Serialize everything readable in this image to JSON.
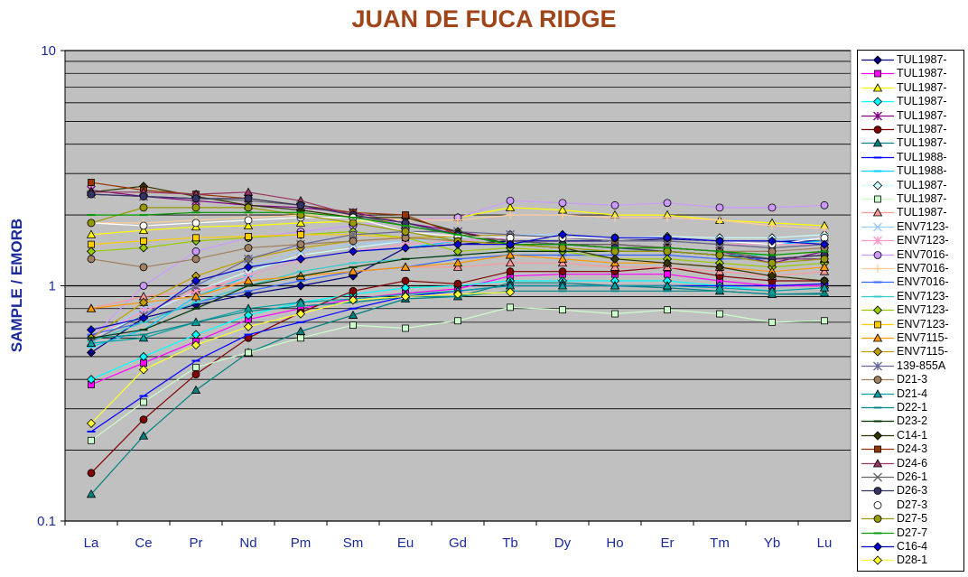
{
  "chart_data": {
    "type": "line",
    "title": "JUAN DE FUCA RIDGE",
    "ylabel": "SAMPLE / EMORB",
    "xlabel": "",
    "yscale": "log",
    "ylim": [
      0.1,
      10
    ],
    "ytick_labels": [
      "10",
      "1",
      "0.1"
    ],
    "grid": true,
    "legend_position": "right",
    "plot_background": "#c0c0c0",
    "categories": [
      "La",
      "Ce",
      "Pr",
      "Nd",
      "Pm",
      "Sm",
      "Eu",
      "Gd",
      "Tb",
      "Dy",
      "Ho",
      "Er",
      "Tm",
      "Yb",
      "Lu"
    ],
    "series": [
      {
        "name": "TUL1987-",
        "color": "#000080",
        "marker": "diamond",
        "values": [
          0.52,
          0.73,
          0.83,
          0.92,
          1.0,
          1.1,
          1.45,
          1.5,
          1.55,
          1.55,
          1.55,
          1.58,
          1.55,
          1.55,
          1.55
        ]
      },
      {
        "name": "TUL1987-",
        "color": "#ff00ff",
        "marker": "square",
        "values": [
          0.38,
          0.47,
          0.58,
          0.72,
          0.8,
          0.88,
          0.93,
          0.97,
          1.1,
          1.12,
          1.12,
          1.12,
          1.05,
          1.0,
          1.0
        ]
      },
      {
        "name": "TUL1987-",
        "color": "#ffff00",
        "marker": "triangle",
        "values": [
          1.65,
          1.72,
          1.78,
          1.8,
          1.85,
          1.88,
          1.9,
          1.95,
          2.15,
          2.1,
          2.0,
          2.0,
          1.9,
          1.85,
          1.8
        ]
      },
      {
        "name": "TUL1987-",
        "color": "#00ffff",
        "marker": "diamond",
        "values": [
          0.4,
          0.5,
          0.62,
          0.75,
          0.85,
          0.92,
          0.98,
          1.0,
          1.05,
          1.05,
          1.05,
          1.05,
          1.0,
          0.95,
          0.98
        ]
      },
      {
        "name": "TUL1987-",
        "color": "#800080",
        "marker": "star",
        "values": [
          2.55,
          2.4,
          2.3,
          2.2,
          2.15,
          2.05,
          1.85,
          1.7,
          1.55,
          1.5,
          1.45,
          1.45,
          1.4,
          1.25,
          1.4
        ]
      },
      {
        "name": "TUL1987-",
        "color": "#800000",
        "marker": "circle",
        "values": [
          0.16,
          0.27,
          0.42,
          0.6,
          0.77,
          0.95,
          1.05,
          1.02,
          1.15,
          1.15,
          1.15,
          1.2,
          1.1,
          1.05,
          1.05
        ]
      },
      {
        "name": "TUL1987-",
        "color": "#008080",
        "marker": "triangle",
        "values": [
          0.13,
          0.23,
          0.36,
          0.52,
          0.64,
          0.75,
          0.88,
          0.9,
          1.03,
          1.03,
          1.0,
          0.98,
          0.95,
          0.92,
          0.93
        ]
      },
      {
        "name": "TUL1988-",
        "color": "#0000ff",
        "marker": "dash",
        "values": [
          0.24,
          0.34,
          0.48,
          0.62,
          0.7,
          0.8,
          0.9,
          0.95,
          1.0,
          1.0,
          1.0,
          1.0,
          1.0,
          1.0,
          1.02
        ]
      },
      {
        "name": "TUL1988-",
        "color": "#00ccff",
        "marker": "dash",
        "values": [
          0.55,
          0.65,
          0.9,
          1.1,
          1.3,
          1.4,
          1.45,
          1.55,
          1.6,
          1.6,
          1.55,
          1.55,
          1.5,
          1.5,
          1.55
        ]
      },
      {
        "name": "TUL1987-",
        "color": "#ccffff",
        "marker": "diamond",
        "values": [
          0.6,
          0.75,
          0.95,
          1.15,
          1.35,
          1.45,
          1.55,
          1.6,
          1.65,
          1.65,
          1.6,
          1.62,
          1.6,
          1.6,
          1.65
        ]
      },
      {
        "name": "TUL1987-",
        "color": "#ccffcc",
        "marker": "square",
        "values": [
          0.22,
          0.32,
          0.45,
          0.52,
          0.6,
          0.68,
          0.66,
          0.71,
          0.81,
          0.79,
          0.76,
          0.79,
          0.76,
          0.7,
          0.71
        ]
      },
      {
        "name": "TUL1987-",
        "color": "#ff9999",
        "marker": "triangle",
        "values": [
          0.8,
          0.9,
          0.95,
          1.05,
          1.1,
          1.15,
          1.2,
          1.2,
          1.25,
          1.25,
          1.2,
          1.2,
          1.15,
          1.1,
          1.15
        ]
      },
      {
        "name": "ENV7123-",
        "color": "#99ccff",
        "marker": "x",
        "values": [
          0.6,
          0.8,
          1.0,
          1.2,
          1.4,
          1.5,
          1.55,
          1.6,
          1.65,
          1.65,
          1.6,
          1.6,
          1.55,
          1.55,
          1.6
        ]
      },
      {
        "name": "ENV7123-",
        "color": "#ff99cc",
        "marker": "star",
        "values": [
          0.6,
          0.78,
          0.95,
          1.1,
          1.3,
          1.4,
          1.5,
          1.55,
          1.6,
          1.6,
          1.55,
          1.55,
          1.5,
          1.5,
          1.5
        ]
      },
      {
        "name": "ENV7016-",
        "color": "#cc99ff",
        "marker": "circle",
        "values": [
          0.6,
          1.0,
          1.4,
          1.6,
          1.7,
          1.8,
          1.9,
          1.95,
          2.3,
          2.25,
          2.2,
          2.25,
          2.15,
          2.15,
          2.2
        ]
      },
      {
        "name": "ENV7016-",
        "color": "#ffcc99",
        "marker": "plus",
        "values": [
          1.85,
          1.85,
          1.9,
          1.95,
          2.0,
          2.0,
          1.9,
          1.9,
          2.0,
          2.0,
          1.95,
          1.95,
          1.9,
          1.8,
          1.75
        ]
      },
      {
        "name": "ENV7016-",
        "color": "#3366ff",
        "marker": "dash",
        "values": [
          0.62,
          0.7,
          0.85,
          0.95,
          1.05,
          1.15,
          1.2,
          1.3,
          1.35,
          1.35,
          1.35,
          1.35,
          1.3,
          1.3,
          1.3
        ]
      },
      {
        "name": "ENV7123-",
        "color": "#33cccc",
        "marker": "dash",
        "values": [
          0.58,
          0.7,
          0.85,
          1.0,
          1.15,
          1.25,
          1.3,
          1.35,
          1.4,
          1.4,
          1.4,
          1.4,
          1.35,
          1.35,
          1.4
        ]
      },
      {
        "name": "ENV7123-",
        "color": "#99cc00",
        "marker": "diamond",
        "values": [
          1.4,
          1.45,
          1.55,
          1.6,
          1.65,
          1.7,
          1.6,
          1.4,
          1.45,
          1.4,
          1.3,
          1.3,
          1.25,
          1.2,
          1.25
        ]
      },
      {
        "name": "ENV7123-",
        "color": "#ffcc00",
        "marker": "square",
        "values": [
          1.5,
          1.55,
          1.6,
          1.62,
          1.65,
          1.65,
          1.6,
          1.55,
          1.5,
          1.5,
          1.45,
          1.45,
          1.4,
          1.35,
          1.4
        ]
      },
      {
        "name": "ENV7115-",
        "color": "#ff9900",
        "marker": "triangle",
        "values": [
          0.8,
          0.85,
          0.9,
          1.05,
          1.1,
          1.15,
          1.2,
          1.25,
          1.35,
          1.3,
          1.25,
          1.25,
          1.2,
          1.15,
          1.2
        ]
      },
      {
        "name": "ENV7115-",
        "color": "#c0a000",
        "marker": "diamond",
        "values": [
          0.6,
          0.85,
          1.1,
          1.3,
          1.45,
          1.55,
          1.6,
          1.62,
          1.65,
          1.6,
          1.55,
          1.55,
          1.5,
          1.45,
          1.5
        ]
      },
      {
        "name": "139-855A",
        "color": "#666699",
        "marker": "star",
        "values": [
          0.58,
          0.75,
          1.0,
          1.3,
          1.5,
          1.65,
          1.7,
          1.7,
          1.65,
          1.6,
          1.55,
          1.55,
          1.5,
          1.45,
          1.5
        ]
      },
      {
        "name": "D21-3",
        "color": "#a08060",
        "marker": "circle",
        "values": [
          1.3,
          1.2,
          1.3,
          1.45,
          1.5,
          1.55,
          1.6,
          1.55,
          1.5,
          1.5,
          1.45,
          1.45,
          1.4,
          1.4,
          1.45
        ]
      },
      {
        "name": "D21-4",
        "color": "#00a0a0",
        "marker": "triangle",
        "values": [
          0.57,
          0.6,
          0.7,
          0.8,
          0.85,
          0.88,
          0.92,
          0.95,
          1.0,
          1.0,
          1.0,
          1.0,
          0.98,
          0.95,
          0.98
        ]
      },
      {
        "name": "D22-1",
        "color": "#008888",
        "marker": "dash",
        "values": [
          0.6,
          0.62,
          0.7,
          0.78,
          0.82,
          0.85,
          0.9,
          0.9,
          0.95,
          0.95,
          0.95,
          0.95,
          0.95,
          0.92,
          0.92
        ]
      },
      {
        "name": "D23-2",
        "color": "#003300",
        "marker": "dash",
        "values": [
          0.6,
          0.65,
          0.8,
          1.0,
          1.1,
          1.2,
          1.3,
          1.35,
          1.4,
          1.4,
          1.4,
          1.4,
          1.35,
          1.3,
          1.35
        ]
      },
      {
        "name": "C14-1",
        "color": "#333300",
        "marker": "diamond",
        "values": [
          2.5,
          2.65,
          2.4,
          2.2,
          2.1,
          1.95,
          1.95,
          1.7,
          1.5,
          1.45,
          1.3,
          1.25,
          1.2,
          1.1,
          1.05
        ]
      },
      {
        "name": "D24-3",
        "color": "#993300",
        "marker": "square",
        "values": [
          2.75,
          2.55,
          2.45,
          2.35,
          2.2,
          2.05,
          2.0,
          1.65,
          1.55,
          1.5,
          1.5,
          1.45,
          1.4,
          1.3,
          1.35
        ]
      },
      {
        "name": "D24-6",
        "color": "#993366",
        "marker": "triangle",
        "values": [
          2.5,
          2.5,
          2.45,
          2.5,
          2.3,
          2.0,
          1.8,
          1.65,
          1.55,
          1.5,
          1.45,
          1.45,
          1.4,
          1.3,
          1.3
        ]
      },
      {
        "name": "D26-1",
        "color": "#666666",
        "marker": "x",
        "values": [
          2.45,
          2.4,
          2.35,
          2.3,
          2.2,
          2.0,
          1.8,
          1.65,
          1.55,
          1.5,
          1.5,
          1.45,
          1.4,
          1.3,
          1.35
        ]
      },
      {
        "name": "D26-3",
        "color": "#333366",
        "marker": "circle",
        "values": [
          2.45,
          2.4,
          2.35,
          2.35,
          2.2,
          2.0,
          1.85,
          1.65,
          1.5,
          1.5,
          1.45,
          1.4,
          1.35,
          1.3,
          1.35
        ]
      },
      {
        "name": "D27-3",
        "color": "#ffffff",
        "marker": "circle",
        "values": [
          1.85,
          1.8,
          1.85,
          1.9,
          1.95,
          1.95,
          1.7,
          1.62,
          1.6,
          1.6,
          1.6,
          1.6,
          1.55,
          1.5,
          1.6
        ]
      },
      {
        "name": "D27-5",
        "color": "#999900",
        "marker": "circle",
        "values": [
          1.85,
          2.15,
          2.15,
          2.15,
          2.0,
          1.85,
          1.7,
          1.55,
          1.5,
          1.45,
          1.4,
          1.4,
          1.35,
          1.25,
          1.3
        ]
      },
      {
        "name": "D27-7",
        "color": "#009900",
        "marker": "dash",
        "values": [
          2.0,
          2.0,
          2.05,
          2.05,
          2.05,
          1.95,
          1.8,
          1.65,
          1.5,
          1.5,
          1.45,
          1.45,
          1.4,
          1.35,
          1.4
        ]
      },
      {
        "name": "C16-4",
        "color": "#0000cc",
        "marker": "diamond",
        "values": [
          0.65,
          0.73,
          1.05,
          1.2,
          1.3,
          1.4,
          1.45,
          1.5,
          1.5,
          1.65,
          1.6,
          1.6,
          1.55,
          1.55,
          1.5
        ]
      },
      {
        "name": "D28-1",
        "color": "#ffff33",
        "marker": "diamond",
        "values": [
          0.26,
          0.44,
          0.56,
          0.67,
          0.76,
          0.87,
          0.9,
          0.92,
          0.94,
          null,
          null,
          null,
          null,
          null,
          null
        ]
      }
    ]
  }
}
